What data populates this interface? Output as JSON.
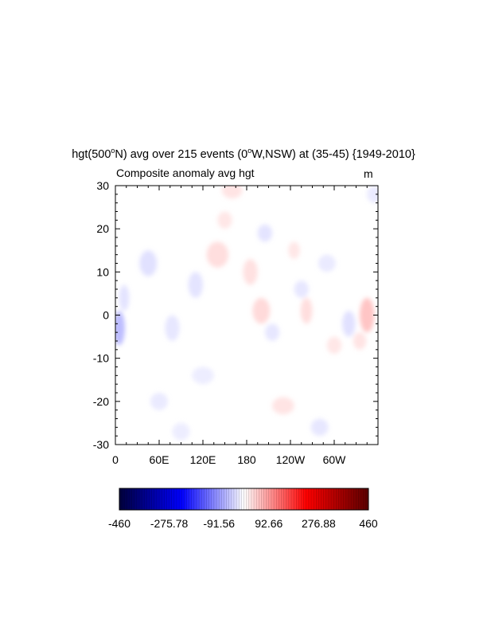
{
  "title_main": "hgt(500",
  "title_sup1": "o",
  "title_mid": "N) avg over 215 events (0",
  "title_sup2": "o",
  "title_end": "W,NSW) at (35-45) {1949-2010}",
  "subtitle": "Composite anomaly avg hgt",
  "units": "m",
  "chart_data": {
    "type": "heatmap",
    "title": "hgt(500°N) avg over 215 events (0°W,NSW) at (35-45) {1949-2010}",
    "subtitle": "Composite anomaly avg hgt",
    "units": "m",
    "x_ticks": [
      "0",
      "60E",
      "120E",
      "180",
      "120W",
      "60W"
    ],
    "x_tick_values": [
      0,
      60,
      120,
      180,
      240,
      300
    ],
    "x_range": [
      0,
      360
    ],
    "y_ticks": [
      "30",
      "20",
      "10",
      "0",
      "-10",
      "-20",
      "-30"
    ],
    "y_tick_values": [
      30,
      20,
      10,
      0,
      -10,
      -20,
      -30
    ],
    "y_range": [
      -30,
      30
    ],
    "colorbar": {
      "labels": [
        "-460",
        "-275.78",
        "-91.56",
        "92.66",
        "276.88",
        "460"
      ],
      "min": -460,
      "max": 460,
      "levels": 100,
      "colors": [
        "#00003c",
        "#0000ff",
        "#ffffff",
        "#ff0000",
        "#5a0000"
      ]
    },
    "anomaly_patches": [
      {
        "lon": 5,
        "lat": -3,
        "value": -110,
        "rlon": 8,
        "rlat": 4
      },
      {
        "lon": 12,
        "lat": 4,
        "value": -45,
        "rlon": 7,
        "rlat": 3
      },
      {
        "lon": 45,
        "lat": 12,
        "value": -50,
        "rlon": 12,
        "rlat": 3
      },
      {
        "lon": 78,
        "lat": -3,
        "value": -40,
        "rlon": 10,
        "rlat": 3
      },
      {
        "lon": 60,
        "lat": -20,
        "value": -35,
        "rlon": 12,
        "rlat": 2
      },
      {
        "lon": 110,
        "lat": 7,
        "value": -45,
        "rlon": 10,
        "rlat": 3
      },
      {
        "lon": 140,
        "lat": 14,
        "value": 55,
        "rlon": 15,
        "rlat": 3
      },
      {
        "lon": 150,
        "lat": 22,
        "value": 40,
        "rlon": 10,
        "rlat": 2
      },
      {
        "lon": 160,
        "lat": 29,
        "value": 45,
        "rlon": 14,
        "rlat": 2
      },
      {
        "lon": 185,
        "lat": 10,
        "value": 50,
        "rlon": 10,
        "rlat": 3
      },
      {
        "lon": 200,
        "lat": 1,
        "value": 60,
        "rlon": 12,
        "rlat": 3
      },
      {
        "lon": 205,
        "lat": 19,
        "value": -45,
        "rlon": 10,
        "rlat": 2
      },
      {
        "lon": 215,
        "lat": -4,
        "value": -40,
        "rlon": 10,
        "rlat": 2
      },
      {
        "lon": 230,
        "lat": -21,
        "value": 45,
        "rlon": 15,
        "rlat": 2
      },
      {
        "lon": 245,
        "lat": 15,
        "value": 40,
        "rlon": 8,
        "rlat": 2
      },
      {
        "lon": 255,
        "lat": 6,
        "value": -40,
        "rlon": 10,
        "rlat": 2
      },
      {
        "lon": 262,
        "lat": 1,
        "value": 55,
        "rlon": 8,
        "rlat": 3
      },
      {
        "lon": 290,
        "lat": 12,
        "value": -35,
        "rlon": 12,
        "rlat": 2
      },
      {
        "lon": 300,
        "lat": -7,
        "value": 40,
        "rlon": 10,
        "rlat": 2
      },
      {
        "lon": 320,
        "lat": -2,
        "value": -50,
        "rlon": 9,
        "rlat": 3
      },
      {
        "lon": 345,
        "lat": 0,
        "value": 95,
        "rlon": 10,
        "rlat": 4
      },
      {
        "lon": 335,
        "lat": -6,
        "value": 45,
        "rlon": 9,
        "rlat": 2
      },
      {
        "lon": 280,
        "lat": -26,
        "value": -40,
        "rlon": 12,
        "rlat": 2
      },
      {
        "lon": 355,
        "lat": 28,
        "value": -35,
        "rlon": 10,
        "rlat": 2
      },
      {
        "lon": 120,
        "lat": -14,
        "value": -30,
        "rlon": 15,
        "rlat": 2
      },
      {
        "lon": 90,
        "lat": -27,
        "value": -30,
        "rlon": 12,
        "rlat": 2
      }
    ]
  }
}
